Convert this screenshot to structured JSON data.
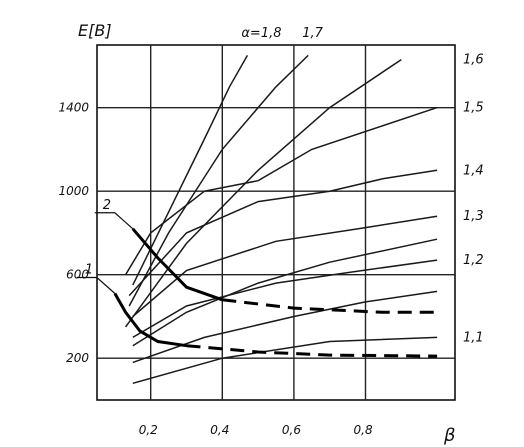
{
  "chart_data": {
    "type": "line",
    "ylabel": "E[B]",
    "xlabel": "β",
    "xlim": [
      0.05,
      1.05
    ],
    "ylim": [
      0,
      1700
    ],
    "x_ticks": [
      {
        "value": 0.2,
        "label": "0,2"
      },
      {
        "value": 0.4,
        "label": "0,4"
      },
      {
        "value": 0.6,
        "label": "0,6"
      },
      {
        "value": 0.8,
        "label": "0,8"
      }
    ],
    "y_ticks": [
      {
        "value": 200,
        "label": "200"
      },
      {
        "value": 600,
        "label": "600"
      },
      {
        "value": 1000,
        "label": "1000"
      },
      {
        "value": 1400,
        "label": "1400"
      }
    ],
    "grid": true,
    "alpha_series": [
      {
        "label": "α=1,8",
        "points": [
          [
            0.15,
            550
          ],
          [
            0.25,
            900
          ],
          [
            0.35,
            1250
          ],
          [
            0.42,
            1500
          ],
          [
            0.47,
            1650
          ]
        ]
      },
      {
        "label": "1,7",
        "points": [
          [
            0.14,
            450
          ],
          [
            0.25,
            800
          ],
          [
            0.4,
            1200
          ],
          [
            0.55,
            1500
          ],
          [
            0.64,
            1650
          ]
        ]
      },
      {
        "label": "1,6",
        "points": [
          [
            0.13,
            350
          ],
          [
            0.3,
            750
          ],
          [
            0.5,
            1100
          ],
          [
            0.7,
            1400
          ],
          [
            0.9,
            1630
          ]
        ]
      },
      {
        "label": "1,5",
        "points": [
          [
            0.13,
            600
          ],
          [
            0.2,
            800
          ],
          [
            0.35,
            1000
          ],
          [
            0.5,
            1050
          ],
          [
            0.65,
            1200
          ],
          [
            1.0,
            1400
          ]
        ]
      },
      {
        "label": "1,4",
        "points": [
          [
            0.14,
            500
          ],
          [
            0.3,
            800
          ],
          [
            0.5,
            950
          ],
          [
            0.7,
            1000
          ],
          [
            0.85,
            1060
          ],
          [
            1.0,
            1100
          ]
        ]
      },
      {
        "label": "1,3",
        "points": [
          [
            0.15,
            400
          ],
          [
            0.3,
            620
          ],
          [
            0.55,
            760
          ],
          [
            0.78,
            820
          ],
          [
            1.0,
            880
          ]
        ]
      },
      {
        "label": "1,2",
        "points": [
          [
            0.15,
            300
          ],
          [
            0.3,
            450
          ],
          [
            0.55,
            560
          ],
          [
            0.75,
            610
          ],
          [
            1.0,
            670
          ]
        ]
      },
      {
        "label": "1,1",
        "points": [
          [
            0.15,
            80
          ],
          [
            0.4,
            200
          ],
          [
            0.7,
            280
          ],
          [
            1.0,
            300
          ]
        ]
      }
    ],
    "extra_series": [
      {
        "points": [
          [
            0.15,
            180
          ],
          [
            0.35,
            300
          ],
          [
            0.6,
            400
          ],
          [
            0.8,
            470
          ],
          [
            1.0,
            520
          ]
        ]
      },
      {
        "points": [
          [
            0.15,
            260
          ],
          [
            0.3,
            420
          ],
          [
            0.5,
            560
          ],
          [
            0.7,
            660
          ],
          [
            1.0,
            770
          ]
        ]
      }
    ],
    "envelope_series": [
      {
        "label": "2",
        "solid": [
          [
            0.15,
            820
          ],
          [
            0.22,
            680
          ],
          [
            0.3,
            540
          ],
          [
            0.4,
            480
          ]
        ],
        "dashed": [
          [
            0.4,
            480
          ],
          [
            0.6,
            440
          ],
          [
            0.85,
            420
          ],
          [
            1.0,
            420
          ]
        ]
      },
      {
        "label": "1",
        "solid": [
          [
            0.1,
            510
          ],
          [
            0.13,
            420
          ],
          [
            0.17,
            330
          ],
          [
            0.22,
            280
          ],
          [
            0.3,
            260
          ]
        ],
        "dashed": [
          [
            0.3,
            260
          ],
          [
            0.5,
            230
          ],
          [
            0.7,
            215
          ],
          [
            1.0,
            210
          ]
        ]
      }
    ]
  }
}
